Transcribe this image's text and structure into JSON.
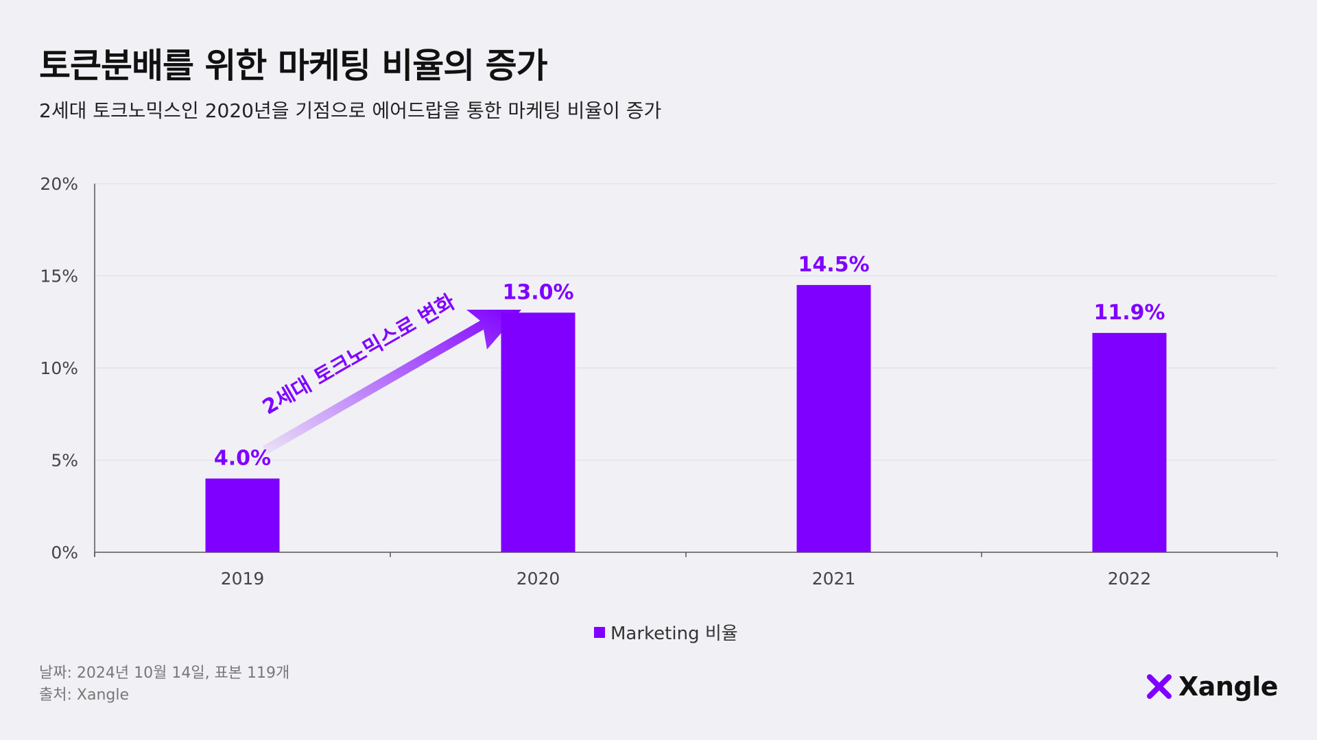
{
  "title": "토큰분배를 위한 마케팅 비율의 증가",
  "subtitle": "2세대 토크노믹스인 2020년을 기점으로 에어드랍을 통한 마케팅 비율이 증가",
  "chart_data": {
    "type": "bar",
    "categories": [
      "2019",
      "2020",
      "2021",
      "2022"
    ],
    "series": [
      {
        "name": "Marketing 비율",
        "values": [
          4.0,
          13.0,
          14.5,
          11.9
        ]
      }
    ],
    "data_labels": [
      "4.0%",
      "13.0%",
      "14.5%",
      "11.9%"
    ],
    "y_ticks": [
      "0%",
      "5%",
      "10%",
      "15%",
      "20%"
    ],
    "ylim": [
      0,
      20
    ],
    "grid": true,
    "legend_position": "bottom-center",
    "annotation": "2세대 토크노믹스로 변화",
    "bar_color": "#7f00ff"
  },
  "legend": {
    "label": "Marketing 비율"
  },
  "footnotes": {
    "date": "날짜: 2024년 10월 14일, 표본 119개",
    "source": "출처: Xangle"
  },
  "logo": {
    "text": "Xangle",
    "icon": "xangle-x-icon",
    "color": "#7f00ff"
  }
}
